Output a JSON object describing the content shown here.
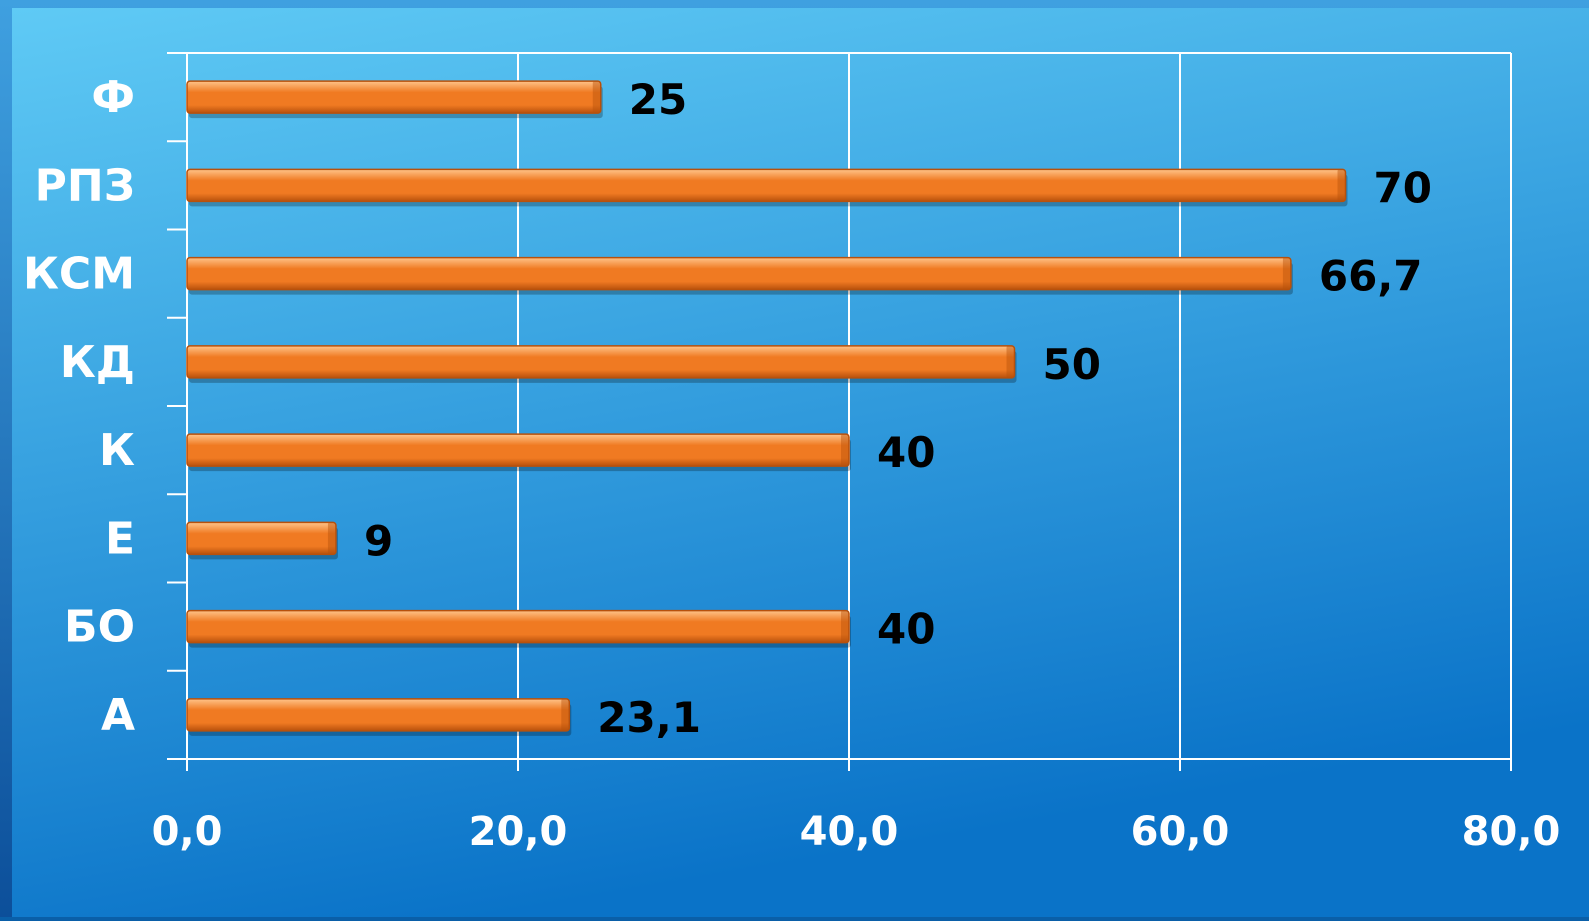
{
  "chart_data": {
    "type": "bar",
    "orientation": "horizontal",
    "categories": [
      "Ф",
      "РПЗ",
      "КСМ",
      "КД",
      "К",
      "Е",
      "БО",
      "А"
    ],
    "values": [
      25,
      70,
      66.7,
      50,
      40,
      9,
      40,
      23.1
    ],
    "data_labels": [
      "25",
      "70",
      "66,7",
      "50",
      "40",
      "9",
      "40",
      "23,1"
    ],
    "x_ticks": [
      "0,0",
      "20,0",
      "40,0",
      "60,0",
      "80,0"
    ],
    "x_tick_values": [
      0,
      20,
      40,
      60,
      80
    ],
    "xlim": [
      0,
      80
    ],
    "grid": true,
    "legend": "none"
  },
  "colors": {
    "background_top": "#5fcaf5",
    "background_bottom": "#0a73c8",
    "bar": "#f07a22",
    "bar_highlight": "#ffc48a",
    "bar_dark": "#b8510c",
    "data_label": "#000000",
    "axis_text": "#ffffff",
    "grid": "#ffffff"
  }
}
